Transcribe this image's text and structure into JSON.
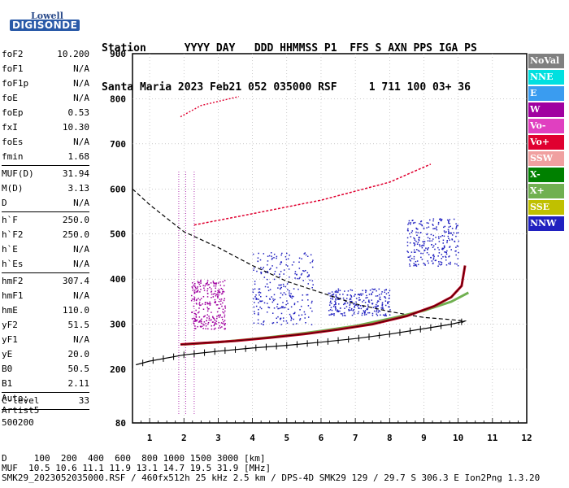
{
  "logo": {
    "top": "Lowell",
    "bottom": "DIGISONDE"
  },
  "header": {
    "line1": "Station      YYYY DAY   DDD HHMMSS P1  FFS S AXN PPS IGA PS",
    "line2": "Santa Maria 2023 Feb21 052 035000 RSF     1 711 100 03+ 36"
  },
  "params": [
    [
      {
        "k": "foF2",
        "v": "10.200"
      },
      {
        "k": "foF1",
        "v": "N/A"
      },
      {
        "k": "foF1p",
        "v": "N/A"
      },
      {
        "k": "foE",
        "v": "N/A"
      },
      {
        "k": "foEp",
        "v": "0.53"
      },
      {
        "k": "fxI",
        "v": "10.30"
      },
      {
        "k": "foEs",
        "v": "N/A"
      },
      {
        "k": "fmin",
        "v": "1.68"
      }
    ],
    [
      {
        "k": "MUF(D)",
        "v": "31.94"
      },
      {
        "k": "M(D)",
        "v": "3.13"
      },
      {
        "k": "D",
        "v": "N/A"
      }
    ],
    [
      {
        "k": "h`F",
        "v": "250.0"
      },
      {
        "k": "h`F2",
        "v": "250.0"
      },
      {
        "k": "h`E",
        "v": "N/A"
      },
      {
        "k": "h`Es",
        "v": "N/A"
      }
    ],
    [
      {
        "k": "hmF2",
        "v": "307.4"
      },
      {
        "k": "hmF1",
        "v": "N/A"
      },
      {
        "k": "hmE",
        "v": "110.0"
      },
      {
        "k": "yF2",
        "v": "51.5"
      },
      {
        "k": "yF1",
        "v": "N/A"
      },
      {
        "k": "yE",
        "v": "20.0"
      },
      {
        "k": "B0",
        "v": "50.5"
      },
      {
        "k": "B1",
        "v": "2.11"
      }
    ],
    [
      {
        "k": "C-level",
        "v": "33"
      }
    ]
  ],
  "auto": {
    "l1": "Auto:",
    "l2": "Artist5",
    "l3": "500200"
  },
  "legend": [
    {
      "label": "NoVal",
      "color": "#808080"
    },
    {
      "label": "NNE",
      "color": "#00e0e0"
    },
    {
      "label": "E",
      "color": "#3a9cf0"
    },
    {
      "label": "W",
      "color": "#a000a0"
    },
    {
      "label": "Vo-",
      "color": "#e040c0"
    },
    {
      "label": "Vo+",
      "color": "#e00030"
    },
    {
      "label": "SSW",
      "color": "#f0a0a0"
    },
    {
      "label": "X-",
      "color": "#008000"
    },
    {
      "label": "X+",
      "color": "#70b050"
    },
    {
      "label": "SSE",
      "color": "#c0c000"
    },
    {
      "label": "NNW",
      "color": "#2020c0"
    }
  ],
  "footer": {
    "line1": "D     100  200  400  600  800 1000 1500 3000 [km]",
    "line2": "MUF  10.5 10.6 11.1 11.9 13.1 14.7 19.5 31.9 [MHz]",
    "line3": "SMK29_2023052035000.RSF / 460fx512h 25 kHz 2.5 km / DPS-4D SMK29 129 / 29.7 S 306.3 E Ion2Png 1.3.20"
  },
  "chart_data": {
    "type": "scatter",
    "xlim": [
      0.5,
      12
    ],
    "ylim": [
      80,
      900
    ],
    "xticks": [
      "1",
      "2",
      "3",
      "4",
      "5",
      "6",
      "7",
      "8",
      "9",
      "10",
      "11",
      "12"
    ],
    "yticks": [
      "80",
      "200",
      "300",
      "400",
      "500",
      "600",
      "700",
      "800",
      "900"
    ],
    "grid": true,
    "ordinary_trace": {
      "x": [
        1.9,
        2.5,
        3.5,
        4.5,
        5.5,
        6.5,
        7.5,
        8.5,
        9.3,
        9.8,
        10.1,
        10.2
      ],
      "y": [
        255,
        258,
        263,
        270,
        278,
        288,
        300,
        318,
        340,
        360,
        385,
        430
      ]
    },
    "extraordinary_trace": {
      "x": [
        2.0,
        3.0,
        4.0,
        5.0,
        6.0,
        7.0,
        8.0,
        9.0,
        9.8,
        10.3
      ],
      "y": [
        255,
        260,
        267,
        275,
        285,
        296,
        312,
        330,
        350,
        370
      ]
    },
    "profile_solid": {
      "x": [
        0.6,
        1.0,
        2.0,
        3.0,
        4.0,
        5.0,
        6.0,
        7.0,
        8.0,
        9.0,
        9.8,
        10.2
      ],
      "y": [
        210,
        218,
        232,
        240,
        247,
        253,
        260,
        268,
        278,
        290,
        300,
        307
      ]
    },
    "profile_dashed": {
      "x": [
        0.5,
        1.0,
        1.5,
        2.0,
        3.0,
        4.0,
        5.0,
        6.0,
        7.0,
        8.0,
        9.0,
        9.8,
        10.2,
        10.0
      ],
      "y": [
        600,
        565,
        535,
        505,
        470,
        430,
        395,
        370,
        345,
        328,
        315,
        310,
        307,
        300
      ]
    },
    "echo_clusters": [
      {
        "x": [
          4.0,
          5.8
        ],
        "y": [
          300,
          460
        ],
        "color": "#2020c0"
      },
      {
        "x": [
          2.2,
          3.2
        ],
        "y": [
          290,
          400
        ],
        "color": "#a000a0"
      },
      {
        "x": [
          6.2,
          8.0
        ],
        "y": [
          320,
          380
        ],
        "color": "#2020c0"
      },
      {
        "x": [
          8.5,
          10.0
        ],
        "y": [
          430,
          535
        ],
        "color": "#2020c0"
      }
    ]
  }
}
